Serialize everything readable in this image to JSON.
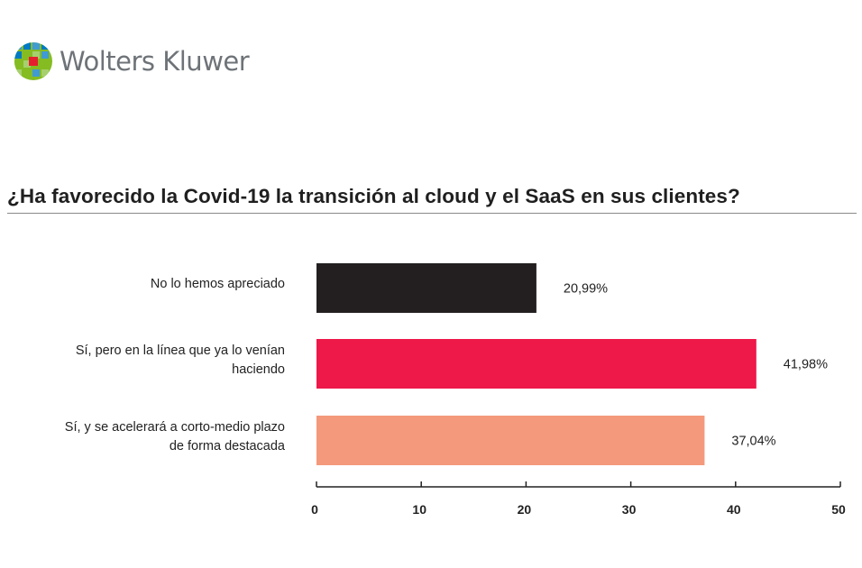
{
  "brand": {
    "name": "Wolters Kluwer",
    "icon": "wolters-kluwer-globe-logo"
  },
  "colors": {
    "title": "#1f1f1f",
    "axis": "#222222"
  },
  "chart_data": {
    "type": "bar",
    "orientation": "horizontal",
    "title": "¿Ha favorecido la Covid-19 la transición al cloud y el SaaS en sus clientes?",
    "categories": [
      "No lo hemos apreciado",
      "Sí, pero en la línea que ya lo venían haciendo",
      "Sí, y se acelerará a corto-medio plazo de forma destacada"
    ],
    "category_lines": [
      [
        "No lo hemos apreciado"
      ],
      [
        "Sí, pero en la línea que ya lo venían",
        "haciendo"
      ],
      [
        "Sí, y se acelerará a corto-medio plazo",
        "de forma destacada"
      ]
    ],
    "values": [
      20.99,
      41.98,
      37.04
    ],
    "data_labels": [
      "20,99%",
      "41,98%",
      "37,04%"
    ],
    "colors": [
      "#231f20",
      "#ee1849",
      "#f4997c"
    ],
    "xlim": [
      0,
      50
    ],
    "xticks": [
      0,
      10,
      20,
      30,
      40,
      50
    ],
    "xtick_labels": [
      "0",
      "10",
      "20",
      "30",
      "40",
      "50"
    ],
    "xlabel": "",
    "ylabel": "",
    "grid": false,
    "legend": "none"
  }
}
